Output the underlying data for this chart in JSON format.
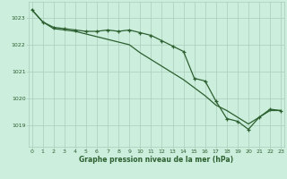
{
  "title": "Graphe pression niveau de la mer (hPa)",
  "bg_color": "#cceedd",
  "grid_color": "#aaccbb",
  "line_color": "#2d6030",
  "x_ticks": [
    0,
    1,
    2,
    3,
    4,
    5,
    6,
    7,
    8,
    9,
    10,
    11,
    12,
    13,
    14,
    15,
    16,
    17,
    18,
    19,
    20,
    21,
    22,
    23
  ],
  "y_ticks": [
    1019,
    1020,
    1021,
    1022,
    1023
  ],
  "ylim": [
    1018.2,
    1023.6
  ],
  "xlim": [
    -0.3,
    23.3
  ],
  "series1_straight": [
    1023.3,
    1022.85,
    1022.6,
    1022.55,
    1022.5,
    1022.4,
    1022.3,
    1022.2,
    1022.1,
    1022.0,
    1021.7,
    1021.45,
    1021.2,
    1020.95,
    1020.7,
    1020.4,
    1020.1,
    1019.75,
    1019.55,
    1019.3,
    1019.05,
    1019.3,
    1019.55,
    1019.55
  ],
  "series2_markers": [
    1023.3,
    1022.85,
    1022.65,
    1022.6,
    1022.55,
    1022.5,
    1022.5,
    1022.55,
    1022.5,
    1022.55,
    1022.45,
    1022.35,
    1022.15,
    1021.95,
    1021.75,
    1020.75,
    1020.65,
    1019.9,
    1019.25,
    1019.15,
    1018.85,
    1019.3,
    1019.6,
    1019.55
  ]
}
